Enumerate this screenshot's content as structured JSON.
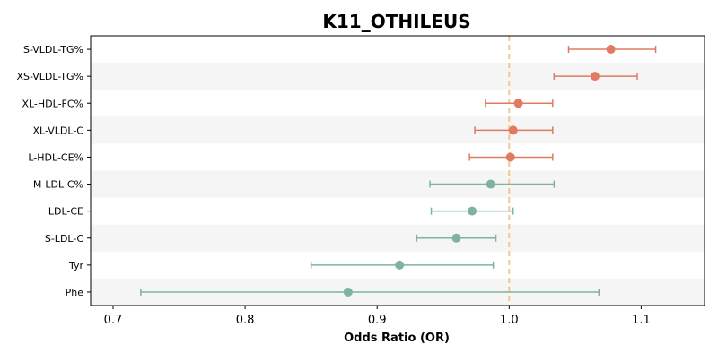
{
  "chart_data": {
    "type": "forest",
    "title": "K11_OTHILEUS",
    "xlabel": "Odds Ratio (OR)",
    "ylabel": "",
    "xlim": [
      0.683,
      1.148
    ],
    "xticks": [
      0.7,
      0.8,
      0.9,
      1.0,
      1.1
    ],
    "xtick_labels": [
      "0.7",
      "0.8",
      "0.9",
      "1.0",
      "1.1"
    ],
    "reference_line": 1.0,
    "grid": false,
    "alternating_row_shading": true,
    "colors": {
      "positive": "#E07B5F",
      "negative": "#7FB3A0",
      "reference_line": "#F5C78E",
      "row_shade": "#F5F5F5"
    },
    "rows": [
      {
        "label": "S-VLDL-TG%",
        "or": 1.077,
        "lower": 1.045,
        "upper": 1.111
      },
      {
        "label": "XS-VLDL-TG%",
        "or": 1.065,
        "lower": 1.034,
        "upper": 1.097
      },
      {
        "label": "XL-HDL-FC%",
        "or": 1.007,
        "lower": 0.982,
        "upper": 1.033
      },
      {
        "label": "XL-VLDL-C",
        "or": 1.003,
        "lower": 0.974,
        "upper": 1.033
      },
      {
        "label": "L-HDL-CE%",
        "or": 1.001,
        "lower": 0.97,
        "upper": 1.033
      },
      {
        "label": "M-LDL-C%",
        "or": 0.986,
        "lower": 0.94,
        "upper": 1.034
      },
      {
        "label": "LDL-CE",
        "or": 0.972,
        "lower": 0.941,
        "upper": 1.003
      },
      {
        "label": "S-LDL-C",
        "or": 0.96,
        "lower": 0.93,
        "upper": 0.99
      },
      {
        "label": "Tyr",
        "or": 0.917,
        "lower": 0.85,
        "upper": 0.988
      },
      {
        "label": "Phe",
        "or": 0.878,
        "lower": 0.721,
        "upper": 1.068
      }
    ]
  }
}
